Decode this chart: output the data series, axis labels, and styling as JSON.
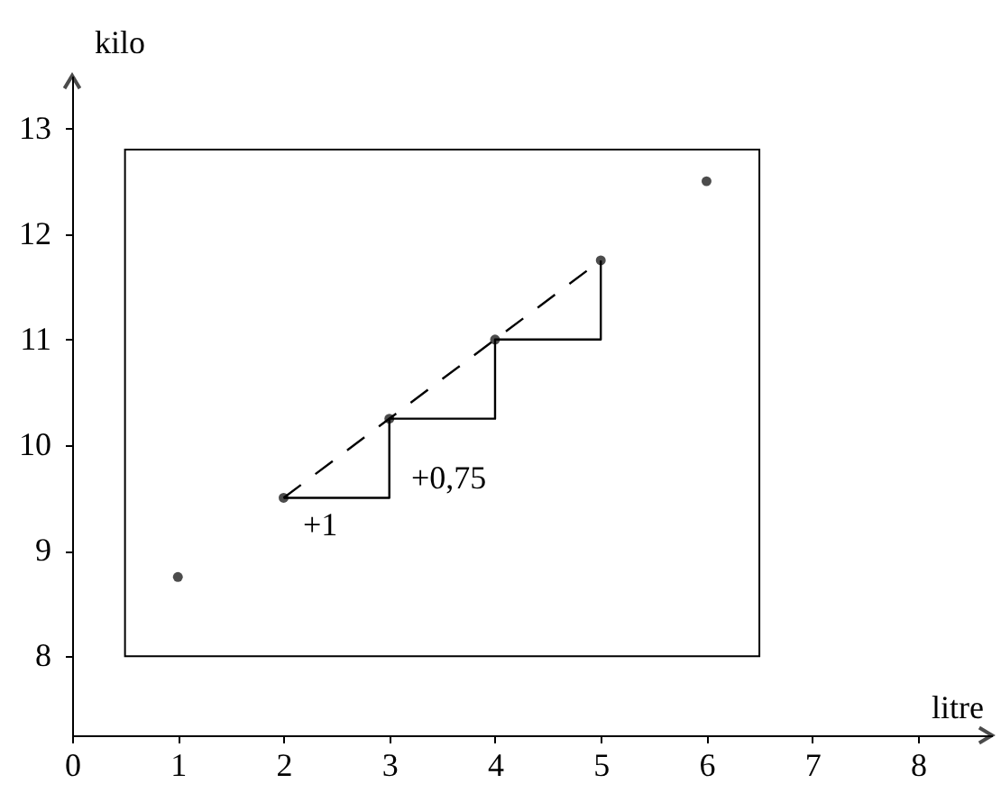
{
  "chart_data": {
    "type": "scatter",
    "xlabel": "litre",
    "ylabel": "kilo",
    "xlim": [
      0,
      8.7
    ],
    "xticks": [
      0,
      1,
      2,
      3,
      4,
      5,
      6,
      7,
      8
    ],
    "ylim": [
      7.25,
      13.5
    ],
    "yticks": [
      8,
      9,
      10,
      11,
      12,
      13
    ],
    "series": [
      {
        "type": "line",
        "color": "#000000",
        "line_style": "dashed",
        "marker": "none",
        "x": [
          2,
          5
        ],
        "values": [
          9.5,
          11.75
        ]
      },
      {
        "type": "step",
        "color": "#000000",
        "line_style": "solid",
        "marker": "none",
        "x": [
          2,
          3,
          4,
          5
        ],
        "values": [
          9.5,
          10.25,
          11,
          11.75
        ]
      },
      {
        "color": "#000000",
        "marker": "circle",
        "x": [
          1,
          2,
          3,
          4,
          5,
          6
        ],
        "values": [
          8.75,
          9.5,
          10.25,
          11,
          11.75,
          12.5
        ]
      }
    ],
    "annotations": [
      "+1",
      "+0,75"
    ],
    "grid": false
  }
}
